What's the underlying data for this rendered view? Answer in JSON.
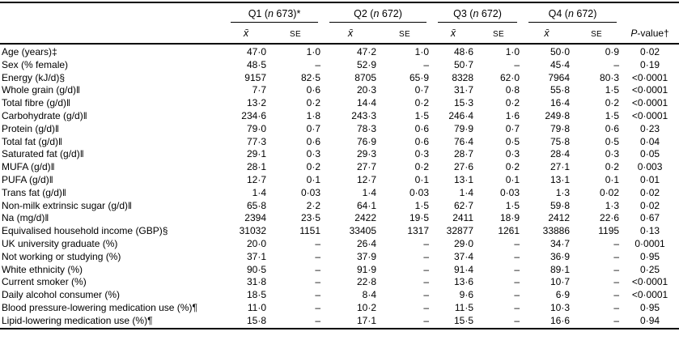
{
  "table": {
    "groups": [
      {
        "pre": "Q1 (",
        "n": "n",
        "post": " 673)*"
      },
      {
        "pre": "Q2 (",
        "n": "n",
        "post": " 672)"
      },
      {
        "pre": "Q3 (",
        "n": "n",
        "post": " 672)"
      },
      {
        "pre": "Q4 (",
        "n": "n",
        "post": " 672)"
      }
    ],
    "subheaders": {
      "mean": "x̄",
      "se": "SE",
      "p_italic": "P",
      "p_rest": "-value†"
    },
    "rows": [
      {
        "label": "Age (years)‡",
        "cells": [
          "47·0",
          "1·0",
          "47·2",
          "1·0",
          "48·6",
          "1·0",
          "50·0",
          "0·9"
        ],
        "p": "0·02"
      },
      {
        "label": "Sex (% female)",
        "cells": [
          "48·5",
          "–",
          "52·9",
          "–",
          "50·7",
          "–",
          "45·4",
          "–"
        ],
        "p": "0·19"
      },
      {
        "label": "Energy (kJ/d)§",
        "cells": [
          "9157",
          "82·5",
          "8705",
          "65·9",
          "8328",
          "62·0",
          "7964",
          "80·3"
        ],
        "p": "<0·0001"
      },
      {
        "label": "Whole grain (g/d)‖",
        "cells": [
          "7·7",
          "0·6",
          "20·3",
          "0·7",
          "31·7",
          "0·8",
          "55·8",
          "1·5"
        ],
        "p": "<0·0001"
      },
      {
        "label": "Total fibre (g/d)‖",
        "cells": [
          "13·2",
          "0·2",
          "14·4",
          "0·2",
          "15·3",
          "0·2",
          "16·4",
          "0·2"
        ],
        "p": "<0·0001"
      },
      {
        "label": "Carbohydrate (g/d)‖",
        "cells": [
          "234·6",
          "1·8",
          "243·3",
          "1·5",
          "246·4",
          "1·6",
          "249·8",
          "1·5"
        ],
        "p": "<0·0001"
      },
      {
        "label": "Protein (g/d)‖",
        "cells": [
          "79·0",
          "0·7",
          "78·3",
          "0·6",
          "79·9",
          "0·7",
          "79·8",
          "0·6"
        ],
        "p": "0·23"
      },
      {
        "label": "Total fat (g/d)‖",
        "cells": [
          "77·3",
          "0·6",
          "76·9",
          "0·6",
          "76·4",
          "0·5",
          "75·8",
          "0·5"
        ],
        "p": "0·04"
      },
      {
        "label": "Saturated fat (g/d)‖",
        "cells": [
          "29·1",
          "0·3",
          "29·3",
          "0·3",
          "28·7",
          "0·3",
          "28·4",
          "0·3"
        ],
        "p": "0·05"
      },
      {
        "label": "MUFA (g/d)‖",
        "cells": [
          "28·1",
          "0·2",
          "27·7",
          "0·2",
          "27·6",
          "0·2",
          "27·1",
          "0·2"
        ],
        "p": "0·003"
      },
      {
        "label": "PUFA (g/d)‖",
        "cells": [
          "12·7",
          "0·1",
          "12·7",
          "0·1",
          "13·1",
          "0·1",
          "13·1",
          "0·1"
        ],
        "p": "0·01"
      },
      {
        "label": "Trans fat (g/d)‖",
        "cells": [
          "1·4",
          "0·03",
          "1·4",
          "0·03",
          "1·4",
          "0·03",
          "1·3",
          "0·02"
        ],
        "p": "0·02"
      },
      {
        "label": "Non-milk extrinsic sugar (g/d)‖",
        "cells": [
          "65·8",
          "2·2",
          "64·1",
          "1·5",
          "62·7",
          "1·5",
          "59·8",
          "1·3"
        ],
        "p": "0·02"
      },
      {
        "label": "Na (mg/d)‖",
        "cells": [
          "2394",
          "23·5",
          "2422",
          "19·5",
          "2411",
          "18·9",
          "2412",
          "22·6"
        ],
        "p": "0·67"
      },
      {
        "label": "Equivalised household income (GBP)§",
        "cells": [
          "31032",
          "1151",
          "33405",
          "1317",
          "32877",
          "1261",
          "33886",
          "1195"
        ],
        "p": "0·13"
      },
      {
        "label": "UK university graduate (%)",
        "cells": [
          "20·0",
          "–",
          "26·4",
          "–",
          "29·0",
          "–",
          "34·7",
          "–"
        ],
        "p": "0·0001"
      },
      {
        "label": "Not working or studying (%)",
        "cells": [
          "37·1",
          "–",
          "37·9",
          "–",
          "37·4",
          "–",
          "36·9",
          "–"
        ],
        "p": "0·95"
      },
      {
        "label": "White ethnicity (%)",
        "cells": [
          "90·5",
          "–",
          "91·9",
          "–",
          "91·4",
          "–",
          "89·1",
          "–"
        ],
        "p": "0·25"
      },
      {
        "label": "Current smoker (%)",
        "cells": [
          "31·8",
          "–",
          "22·8",
          "–",
          "13·6",
          "–",
          "10·7",
          "–"
        ],
        "p": "<0·0001"
      },
      {
        "label": "Daily alcohol consumer (%)",
        "cells": [
          "18·5",
          "–",
          "8·4",
          "–",
          "9·6",
          "–",
          "6·9",
          "–"
        ],
        "p": "<0·0001"
      },
      {
        "label": "Blood pressure-lowering medication use (%)¶",
        "cells": [
          "11·0",
          "–",
          "10·2",
          "–",
          "11·5",
          "–",
          "10·3",
          "–"
        ],
        "p": "0·95"
      },
      {
        "label": "Lipid-lowering medication use (%)¶",
        "cells": [
          "15·8",
          "–",
          "17·1",
          "–",
          "15·5",
          "–",
          "16·6",
          "–"
        ],
        "p": "0·94"
      }
    ]
  }
}
